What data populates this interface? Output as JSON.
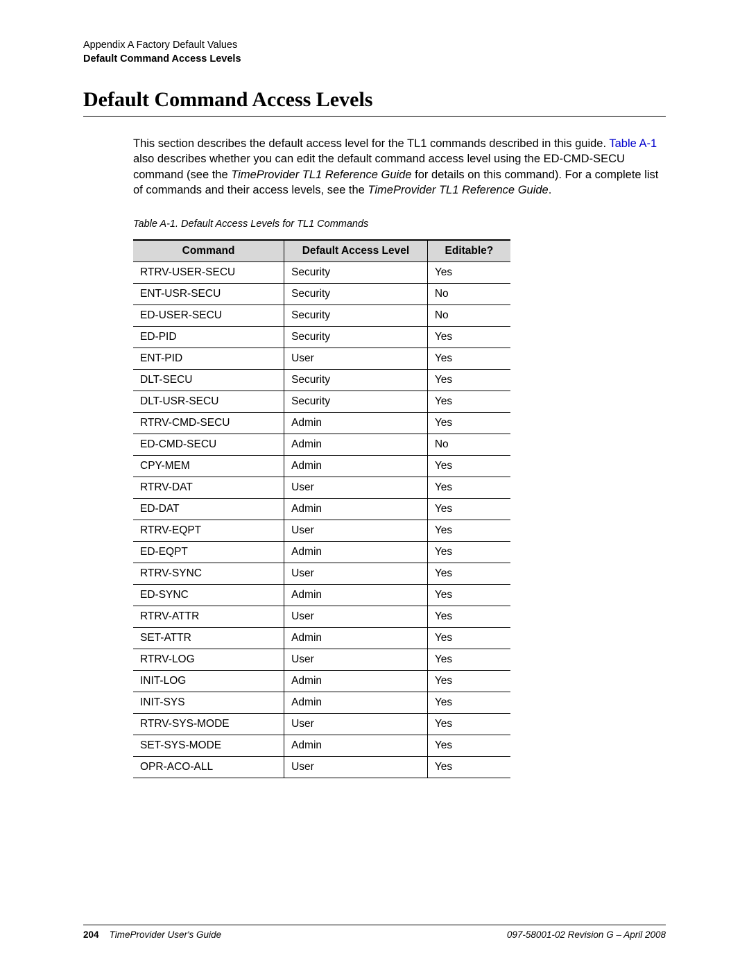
{
  "header": {
    "line1": "Appendix A Factory Default Values",
    "line2": "Default Command Access Levels"
  },
  "title": "Default Command Access Levels",
  "intro": {
    "pre": "This section describes the default access level for the TL1 commands described in this guide. ",
    "link": "Table A-1",
    "mid1": " also describes whether you can edit the default command access level using the ED-CMD-SECU command (see the ",
    "ital1": "TimeProvider TL1 Reference Guide",
    "mid2": " for details on this command). For a complete list of commands and their access levels, see the ",
    "ital2": "TimeProvider TL1 Reference Guide",
    "end": "."
  },
  "caption": "Table A-1.  Default Access Levels for TL1 Commands",
  "table": {
    "headers": [
      "Command",
      "Default Access Level",
      "Editable?"
    ],
    "rows": [
      [
        "RTRV-USER-SECU",
        "Security",
        "Yes"
      ],
      [
        "ENT-USR-SECU",
        "Security",
        "No"
      ],
      [
        "ED-USER-SECU",
        "Security",
        "No"
      ],
      [
        "ED-PID",
        "Security",
        "Yes"
      ],
      [
        "ENT-PID",
        "User",
        "Yes"
      ],
      [
        "DLT-SECU",
        "Security",
        "Yes"
      ],
      [
        "DLT-USR-SECU",
        "Security",
        "Yes"
      ],
      [
        "RTRV-CMD-SECU",
        "Admin",
        "Yes"
      ],
      [
        "ED-CMD-SECU",
        "Admin",
        "No"
      ],
      [
        "CPY-MEM",
        "Admin",
        "Yes"
      ],
      [
        "RTRV-DAT",
        "User",
        "Yes"
      ],
      [
        "ED-DAT",
        "Admin",
        "Yes"
      ],
      [
        "RTRV-EQPT",
        "User",
        "Yes"
      ],
      [
        "ED-EQPT",
        "Admin",
        "Yes"
      ],
      [
        "RTRV-SYNC",
        "User",
        "Yes"
      ],
      [
        "ED-SYNC",
        "Admin",
        "Yes"
      ],
      [
        "RTRV-ATTR",
        "User",
        "Yes"
      ],
      [
        "SET-ATTR",
        "Admin",
        "Yes"
      ],
      [
        "RTRV-LOG",
        "User",
        "Yes"
      ],
      [
        "INIT-LOG",
        "Admin",
        "Yes"
      ],
      [
        "INIT-SYS",
        "Admin",
        "Yes"
      ],
      [
        "RTRV-SYS-MODE",
        "User",
        "Yes"
      ],
      [
        "SET-SYS-MODE",
        "Admin",
        "Yes"
      ],
      [
        "OPR-ACO-ALL",
        "User",
        "Yes"
      ]
    ]
  },
  "footer": {
    "page": "204",
    "left": "TimeProvider User's Guide",
    "right": "097-58001-02 Revision G – April 2008"
  },
  "colors": {
    "link": "#0000cc",
    "header_bg": "#d8d8d8",
    "text": "#000000",
    "background": "#ffffff"
  }
}
